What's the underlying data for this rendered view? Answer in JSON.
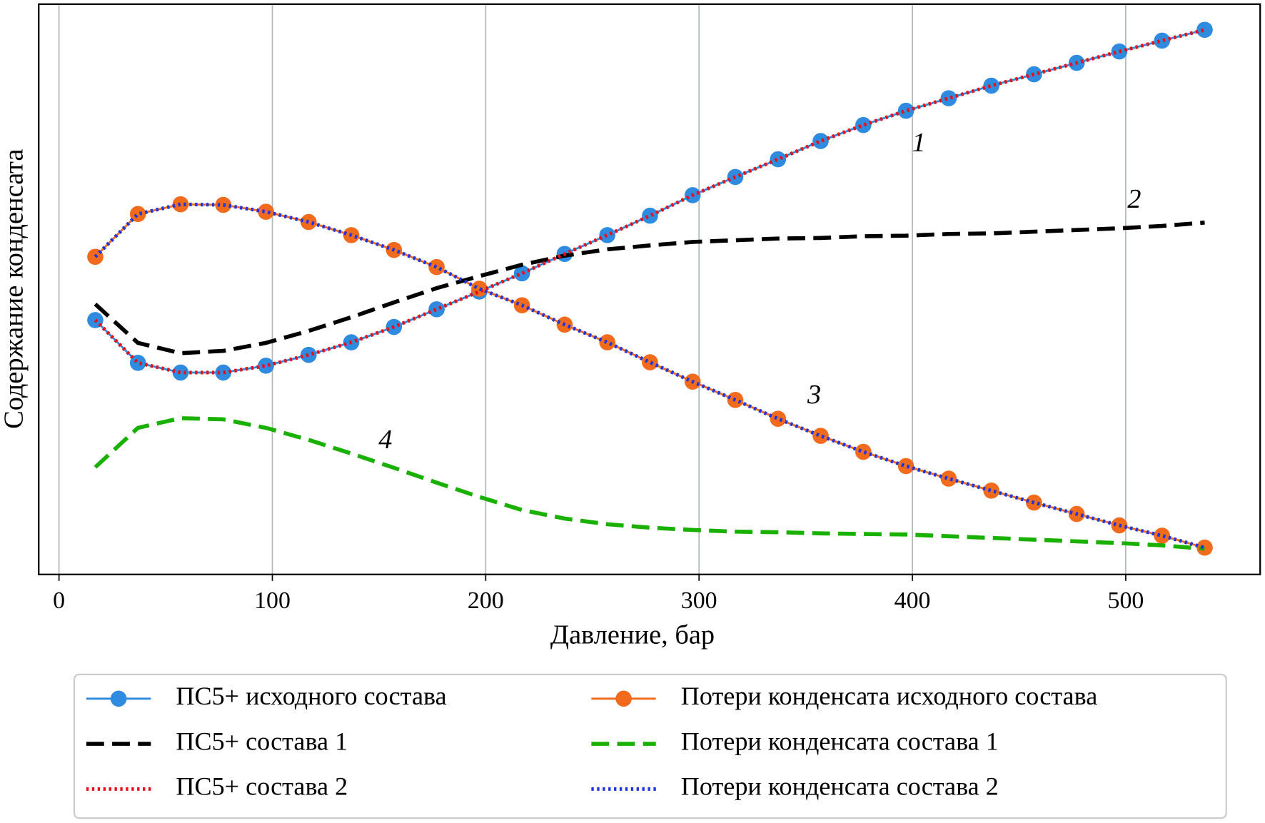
{
  "chart_data": {
    "type": "line",
    "xlabel": "Давление, бар",
    "ylabel": "Содержание конденсата",
    "x": [
      17,
      37,
      57,
      77,
      97,
      117,
      137,
      157,
      177,
      197,
      217,
      237,
      257,
      277,
      297,
      317,
      337,
      357,
      377,
      397,
      417,
      437,
      457,
      477,
      497,
      517,
      537
    ],
    "xlim": [
      -9.5,
      563
    ],
    "xticks": [
      0,
      100,
      200,
      300,
      400,
      500
    ],
    "ylim": [
      0,
      100
    ],
    "grid": "x",
    "legend": "below",
    "series": [
      {
        "name": "ПС5+ исходного состава",
        "color": "#2e8be0",
        "style": "solid-marker",
        "values": [
          44.6,
          37.1,
          35.4,
          35.4,
          36.6,
          38.5,
          40.7,
          43.4,
          46.5,
          49.6,
          52.8,
          56.2,
          59.5,
          62.9,
          66.5,
          69.7,
          72.8,
          76.0,
          78.8,
          81.3,
          83.5,
          85.7,
          87.7,
          89.7,
          91.7,
          93.6,
          95.5
        ]
      },
      {
        "name": "ПС5+ состава 1",
        "color": "#000000",
        "style": "dashed",
        "values": [
          47.4,
          40.6,
          38.8,
          39.2,
          40.6,
          42.7,
          45.1,
          47.7,
          50.2,
          52.3,
          54.3,
          55.9,
          57.0,
          57.7,
          58.3,
          58.6,
          58.9,
          59.0,
          59.3,
          59.4,
          59.7,
          59.8,
          60.1,
          60.4,
          60.7,
          61.1,
          61.7
        ]
      },
      {
        "name": "ПС5+ состава 2",
        "color": "#e8101a",
        "style": "dotted",
        "values": [
          44.6,
          37.1,
          35.4,
          35.4,
          36.6,
          38.5,
          40.7,
          43.4,
          46.5,
          49.6,
          52.8,
          56.2,
          59.5,
          62.9,
          66.5,
          69.7,
          72.8,
          76.0,
          78.8,
          81.3,
          83.5,
          85.7,
          87.7,
          89.7,
          91.7,
          93.6,
          95.5
        ]
      },
      {
        "name": "Потери конденсата исходного состава",
        "color": "#f26b1d",
        "style": "solid-marker",
        "values": [
          55.7,
          63.2,
          64.9,
          64.8,
          63.6,
          61.8,
          59.5,
          56.9,
          53.9,
          50.1,
          47.2,
          43.8,
          40.7,
          37.2,
          33.8,
          30.6,
          27.3,
          24.3,
          21.5,
          19.0,
          16.8,
          14.7,
          12.6,
          10.6,
          8.6,
          6.8,
          4.7
        ]
      },
      {
        "name": "Потери конденсата состава 1",
        "color": "#19b000",
        "style": "dashed",
        "values": [
          18.8,
          25.7,
          27.4,
          27.2,
          25.7,
          23.6,
          21.2,
          18.7,
          16.1,
          13.6,
          11.3,
          9.8,
          8.8,
          8.2,
          7.8,
          7.5,
          7.4,
          7.2,
          7.1,
          7.0,
          6.7,
          6.4,
          6.1,
          5.8,
          5.5,
          5.1,
          4.5
        ]
      },
      {
        "name": "Потери конденсата состава 2",
        "color": "#1f35e0",
        "style": "dotted",
        "values": [
          55.7,
          63.2,
          64.9,
          64.8,
          63.6,
          61.8,
          59.5,
          56.9,
          53.9,
          50.1,
          47.2,
          43.8,
          40.7,
          37.2,
          33.8,
          30.6,
          27.3,
          24.3,
          21.5,
          19.0,
          16.8,
          14.7,
          12.6,
          10.6,
          8.6,
          6.8,
          4.7
        ]
      }
    ],
    "annotations": [
      {
        "text": "1",
        "x": 403,
        "y": 75.3
      },
      {
        "text": "2",
        "x": 504,
        "y": 65.4
      },
      {
        "text": "3",
        "x": 354,
        "y": 31.1
      },
      {
        "text": "4",
        "x": 153,
        "y": 23.2
      }
    ]
  }
}
